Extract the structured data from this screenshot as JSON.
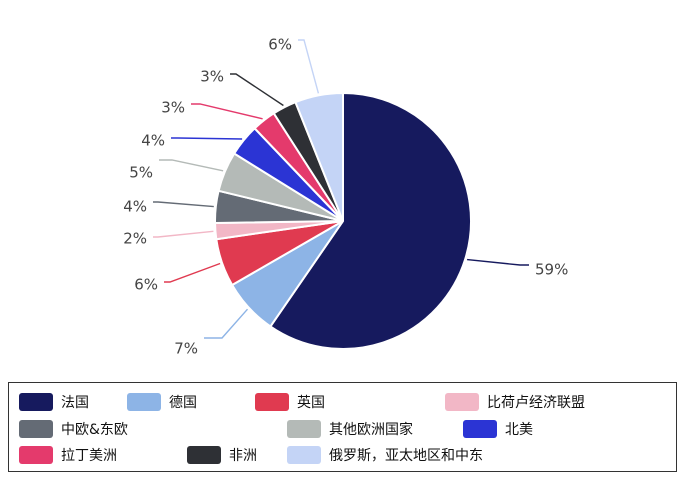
{
  "chart_data": {
    "type": "pie",
    "title": "",
    "slices": [
      {
        "name": "法国",
        "value": 59,
        "label": "59%",
        "color": "#161a5e"
      },
      {
        "name": "德国",
        "value": 7,
        "label": "7%",
        "color": "#8db4e6"
      },
      {
        "name": "英国",
        "value": 6,
        "label": "6%",
        "color": "#e03a50"
      },
      {
        "name": "比荷卢经济联盟",
        "value": 2,
        "label": "2%",
        "color": "#f2b7c6"
      },
      {
        "name": "中欧&东欧",
        "value": 4,
        "label": "4%",
        "color": "#646b75"
      },
      {
        "name": "其他欧洲国家",
        "value": 5,
        "label": "5%",
        "color": "#b4bab7"
      },
      {
        "name": "北美",
        "value": 4,
        "label": "4%",
        "color": "#2b34d4"
      },
      {
        "name": "拉丁美洲",
        "value": 3,
        "label": "3%",
        "color": "#e43a6c"
      },
      {
        "name": "非洲",
        "value": 3,
        "label": "3%",
        "color": "#2e3035"
      },
      {
        "name": "俄罗斯，亚太地区和中东",
        "value": 6,
        "label": "6%",
        "color": "#c4d4f6"
      }
    ],
    "legend_order": [
      "法国",
      "德国",
      "英国",
      "比荷卢经济联盟",
      "中欧&东欧",
      "其他欧洲国家",
      "北美",
      "拉丁美洲",
      "非洲",
      "俄罗斯，亚太地区和中东"
    ],
    "legend_position": "bottom"
  }
}
